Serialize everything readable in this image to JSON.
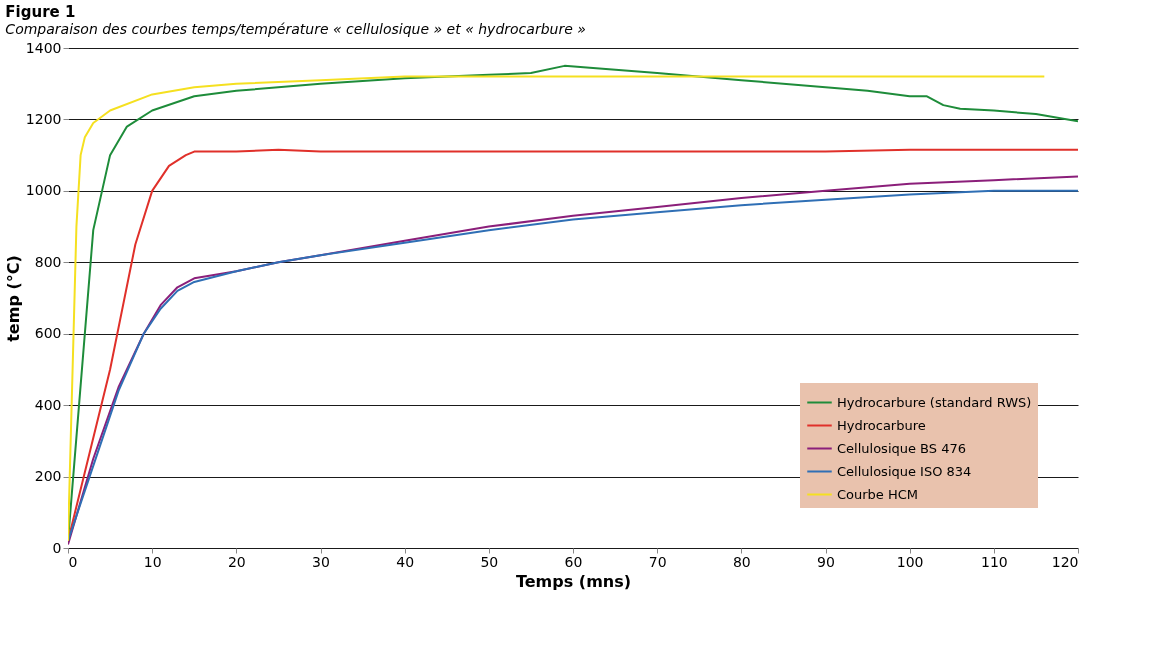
{
  "chart_data": {
    "type": "line",
    "title": "Figure 1",
    "xlabel": "Temps (mns)",
    "ylabel": "temp (°C)",
    "annotations": [
      "Comparaison des courbes temps/température « cellulosique » et « hydrocarbure »"
    ],
    "xlim": [
      0,
      120
    ],
    "xticks": [
      0,
      10,
      20,
      30,
      40,
      50,
      60,
      70,
      80,
      90,
      100,
      110,
      120
    ],
    "ylim": [
      0,
      1400
    ],
    "yticks": [
      0,
      200,
      400,
      600,
      800,
      1000,
      1200,
      1400
    ],
    "grid": true,
    "legend": "bottom right",
    "line_style": "solid",
    "marker": "none",
    "series": [
      {
        "name": "Hydrocarbure (standard RWS)",
        "color": "#1e8c3a",
        "x": [
          0,
          3,
          5,
          7,
          10,
          15,
          20,
          30,
          40,
          50,
          55,
          59,
          62,
          70,
          80,
          90,
          95,
          100,
          102,
          104,
          106,
          110,
          115,
          120
        ],
        "values": [
          20,
          890,
          1100,
          1180,
          1225,
          1265,
          1280,
          1300,
          1315,
          1325,
          1330,
          1350,
          1345,
          1330,
          1310,
          1290,
          1280,
          1265,
          1265,
          1240,
          1230,
          1225,
          1215,
          1195
        ]
      },
      {
        "name": "Hydrocarbure",
        "color": "#e0302a",
        "x": [
          0,
          5,
          8,
          10,
          12,
          14,
          15,
          20,
          25,
          30,
          60,
          90,
          100,
          120
        ],
        "values": [
          20,
          500,
          850,
          1000,
          1070,
          1100,
          1110,
          1110,
          1115,
          1110,
          1110,
          1110,
          1115,
          1115
        ]
      },
      {
        "name": "Cellulosique BS 476",
        "color": "#8b1f7a",
        "x": [
          0,
          3,
          6,
          9,
          11,
          13,
          15,
          20,
          25,
          30,
          40,
          50,
          60,
          70,
          80,
          90,
          100,
          110,
          120
        ],
        "values": [
          10,
          250,
          450,
          600,
          680,
          730,
          755,
          775,
          800,
          820,
          860,
          900,
          930,
          955,
          980,
          1000,
          1020,
          1030,
          1040
        ]
      },
      {
        "name": "Cellulosique ISO 834",
        "color": "#2f6fb5",
        "x": [
          0,
          3,
          6,
          9,
          11,
          13,
          15,
          20,
          25,
          30,
          40,
          50,
          60,
          70,
          80,
          90,
          100,
          110,
          120
        ],
        "values": [
          20,
          230,
          440,
          600,
          670,
          720,
          745,
          775,
          800,
          820,
          855,
          890,
          920,
          940,
          960,
          975,
          990,
          1000,
          1000
        ]
      },
      {
        "name": "Courbe HCM",
        "color": "#f5e020",
        "x": [
          0,
          1,
          1.5,
          2,
          3,
          5,
          10,
          15,
          20,
          30,
          40,
          60,
          116
        ],
        "values": [
          20,
          900,
          1100,
          1150,
          1190,
          1225,
          1270,
          1290,
          1300,
          1310,
          1320,
          1320,
          1320
        ]
      }
    ]
  }
}
